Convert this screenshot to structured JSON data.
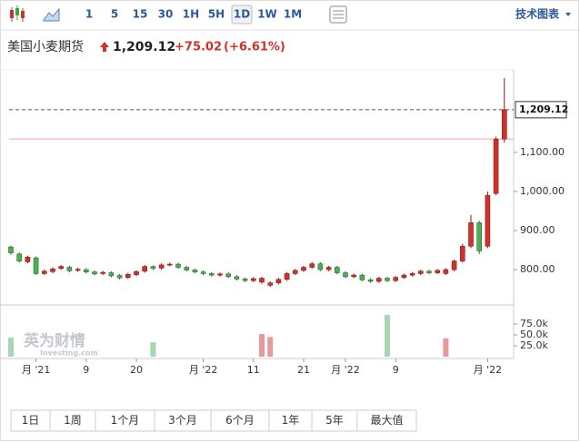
{
  "toolbar": {
    "intervals": [
      "1",
      "5",
      "15",
      "30",
      "1H",
      "5H",
      "1D",
      "1W",
      "1M"
    ],
    "active": "1D",
    "menu": "技术图表"
  },
  "header": {
    "name": "美国小麦期货",
    "change": "+75.02",
    "change_pct": "(+6.61%)"
  },
  "chart_data": {
    "type": "candlestick",
    "last": {
      "value": 1209.12,
      "label": "1,209.12"
    },
    "prev_close": 1134.1,
    "up_color": "#d0312d",
    "down_color": "#4caf50",
    "open": [
      858,
      840,
      820,
      830,
      790,
      795,
      803,
      806,
      798,
      800,
      794,
      790,
      792,
      785,
      780,
      787,
      796,
      808,
      804,
      812,
      814,
      806,
      799,
      794,
      790,
      786,
      789,
      782,
      776,
      772,
      768,
      760,
      766,
      775,
      790,
      798,
      806,
      815,
      800,
      806,
      792,
      782,
      786,
      774,
      770,
      778,
      772,
      780,
      786,
      790,
      796,
      792,
      790,
      800,
      822,
      860,
      920,
      860,
      995,
      1134.1
    ],
    "high": [
      862,
      844,
      836,
      834,
      800,
      806,
      812,
      810,
      805,
      804,
      798,
      797,
      796,
      789,
      792,
      799,
      812,
      811,
      816,
      818,
      818,
      810,
      803,
      798,
      794,
      793,
      793,
      786,
      780,
      781,
      782,
      770,
      779,
      794,
      802,
      810,
      820,
      819,
      810,
      810,
      796,
      790,
      790,
      778,
      782,
      782,
      784,
      790,
      794,
      800,
      800,
      802,
      804,
      826,
      866,
      940,
      925,
      1000,
      1140,
      1290
    ],
    "low": [
      838,
      818,
      816,
      786,
      786,
      791,
      799,
      793,
      794,
      790,
      785,
      786,
      780,
      775,
      776,
      783,
      792,
      799,
      800,
      808,
      802,
      795,
      790,
      786,
      782,
      782,
      778,
      772,
      768,
      768,
      764,
      756,
      762,
      771,
      786,
      794,
      802,
      796,
      796,
      788,
      778,
      778,
      770,
      766,
      766,
      768,
      768,
      776,
      782,
      786,
      788,
      788,
      786,
      796,
      818,
      855,
      840,
      855,
      990,
      1125
    ],
    "close": [
      843,
      822,
      832,
      790,
      796,
      802,
      808,
      797,
      801,
      794,
      789,
      793,
      784,
      779,
      788,
      795,
      808,
      803,
      812,
      814,
      806,
      799,
      794,
      790,
      786,
      789,
      782,
      776,
      772,
      777,
      778,
      766,
      775,
      790,
      798,
      806,
      815,
      800,
      806,
      792,
      782,
      786,
      774,
      770,
      778,
      772,
      780,
      786,
      790,
      796,
      792,
      798,
      800,
      822,
      860,
      920,
      848,
      990,
      1134.1,
      1209.12
    ],
    "volume": [
      43750,
      null,
      null,
      null,
      null,
      null,
      null,
      null,
      null,
      null,
      null,
      null,
      null,
      null,
      null,
      null,
      null,
      33000,
      null,
      null,
      null,
      null,
      null,
      null,
      null,
      null,
      null,
      null,
      null,
      null,
      52000,
      45000,
      null,
      null,
      null,
      null,
      null,
      null,
      null,
      null,
      null,
      null,
      null,
      null,
      null,
      96000,
      null,
      null,
      null,
      null,
      null,
      null,
      42000,
      null,
      null,
      null,
      null,
      null,
      null,
      null
    ],
    "ylim": [
      712,
      1304
    ],
    "yticks": [
      {
        "value": 800,
        "label": "800.00"
      },
      {
        "value": 900,
        "label": "900.00"
      },
      {
        "value": 1000,
        "label": "1,000.00"
      },
      {
        "value": 1100,
        "label": "1,100.00"
      }
    ],
    "vol_ylim": [
      0,
      116700
    ],
    "vol_ticks": [
      {
        "value": 75000,
        "label": "75.0k"
      },
      {
        "value": 50000,
        "label": "50.0k"
      },
      {
        "value": 25000,
        "label": "25.0k"
      }
    ],
    "xticks": [
      {
        "value": 3,
        "label": "月 '21"
      },
      {
        "value": 9,
        "label": "9"
      },
      {
        "value": 15,
        "label": "20"
      },
      {
        "value": 23,
        "label": "月 '22"
      },
      {
        "value": 29,
        "label": "11"
      },
      {
        "value": 35,
        "label": "21"
      },
      {
        "value": 40,
        "label": "月 '22"
      },
      {
        "value": 46,
        "label": "9"
      },
      {
        "value": 57,
        "label": "月 '22"
      }
    ]
  },
  "watermark": {
    "cn": "英为财情",
    "en": "Investing.com"
  },
  "ranges": [
    "1日",
    "1周",
    "1个月",
    "3个月",
    "6个月",
    "1年",
    "5年",
    "最大值"
  ]
}
